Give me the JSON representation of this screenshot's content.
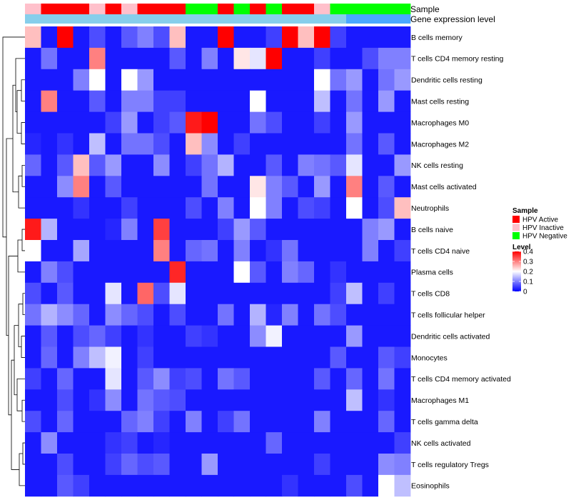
{
  "chart_data": {
    "type": "heatmap",
    "title": "",
    "annotation_tracks": {
      "sample_label": "Sample",
      "expression_label": "Gene expression level"
    },
    "rows": [
      "B cells memory",
      "T cells CD4 memory resting",
      "Dendritic cells resting",
      "Mast cells resting",
      "Macrophages M0",
      "Macrophages M2",
      "NK cells resting",
      "Mast cells activated",
      "Neutrophils",
      "B cells naive",
      "T cells CD4 naive",
      "Plasma cells",
      "T cells CD8",
      "T cells follicular helper",
      "Dendritic cells activated",
      "Monocytes",
      "T cells CD4 memory activated",
      "Macrophages M1",
      "T cells gamma delta",
      "NK cells activated",
      "T cells regulatory  Tregs",
      "Eosinophils"
    ],
    "sample_groups": [
      "HPV Inactive",
      "HPV Active",
      "HPV Active",
      "HPV Active",
      "HPV Inactive",
      "HPV Active",
      "HPV Inactive",
      "HPV Active",
      "HPV Active",
      "HPV Active",
      "HPV Negative",
      "HPV Negative",
      "HPV Active",
      "HPV Negative",
      "HPV Active",
      "HPV Negative",
      "HPV Active",
      "HPV Active",
      "HPV Inactive",
      "HPV Negative",
      "HPV Negative",
      "HPV Negative",
      "HPV Negative",
      "HPV Negative"
    ],
    "expression_track": [
      0.05,
      0.05,
      0.05,
      0.05,
      0.05,
      0.05,
      0.05,
      0.05,
      0.05,
      0.05,
      0.05,
      0.05,
      0.05,
      0.05,
      0.05,
      0.05,
      0.05,
      0.05,
      0.05,
      0.05,
      0.1,
      0.1,
      0.1,
      0.1
    ],
    "values": [
      [
        0.25,
        0.02,
        0.4,
        0.02,
        0.06,
        0.02,
        0.07,
        0.1,
        0.06,
        0.25,
        0.02,
        0.02,
        0.4,
        0.02,
        0.02,
        0.05,
        0.4,
        0.25,
        0.4,
        0.05,
        0.02,
        0.02,
        0.02,
        0.02
      ],
      [
        0.02,
        0.09,
        0.02,
        0.02,
        0.3,
        0.02,
        0.02,
        0.02,
        0.02,
        0.07,
        0.02,
        0.1,
        0.02,
        0.22,
        0.18,
        0.4,
        0.02,
        0.02,
        0.05,
        0.02,
        0.02,
        0.06,
        0.1,
        0.1
      ],
      [
        0.02,
        0.02,
        0.02,
        0.1,
        0.2,
        0.02,
        0.2,
        0.12,
        0.02,
        0.02,
        0.02,
        0.02,
        0.02,
        0.02,
        0.02,
        0.02,
        0.02,
        0.02,
        0.2,
        0.09,
        0.12,
        0.02,
        0.09,
        0.12
      ],
      [
        0.02,
        0.3,
        0.02,
        0.02,
        0.07,
        0.02,
        0.1,
        0.1,
        0.05,
        0.05,
        0.02,
        0.02,
        0.02,
        0.02,
        0.2,
        0.02,
        0.02,
        0.02,
        0.15,
        0.02,
        0.09,
        0.02,
        0.12,
        0.02
      ],
      [
        0.02,
        0.02,
        0.02,
        0.02,
        0.02,
        0.05,
        0.12,
        0.02,
        0.05,
        0.07,
        0.38,
        0.4,
        0.02,
        0.02,
        0.09,
        0.06,
        0.02,
        0.02,
        0.05,
        0.02,
        0.12,
        0.02,
        0.02,
        0.02
      ],
      [
        0.03,
        0.02,
        0.04,
        0.02,
        0.15,
        0.02,
        0.09,
        0.09,
        0.06,
        0.02,
        0.25,
        0.11,
        0.02,
        0.05,
        0.02,
        0.02,
        0.02,
        0.02,
        0.02,
        0.02,
        0.09,
        0.02,
        0.07,
        0.02
      ],
      [
        0.08,
        0.02,
        0.07,
        0.25,
        0.07,
        0.12,
        0.02,
        0.02,
        0.11,
        0.02,
        0.05,
        0.09,
        0.14,
        0.02,
        0.02,
        0.07,
        0.02,
        0.1,
        0.09,
        0.07,
        0.18,
        0.02,
        0.02,
        0.12
      ],
      [
        0.02,
        0.02,
        0.11,
        0.3,
        0.02,
        0.07,
        0.02,
        0.02,
        0.02,
        0.02,
        0.02,
        0.09,
        0.02,
        0.02,
        0.22,
        0.1,
        0.07,
        0.02,
        0.12,
        0.02,
        0.3,
        0.02,
        0.07,
        0.02
      ],
      [
        0.02,
        0.02,
        0.02,
        0.04,
        0.02,
        0.02,
        0.05,
        0.02,
        0.02,
        0.02,
        0.06,
        0.02,
        0.1,
        0.02,
        0.2,
        0.1,
        0.02,
        0.06,
        0.05,
        0.02,
        0.2,
        0.02,
        0.06,
        0.25
      ],
      [
        0.38,
        0.14,
        0.02,
        0.02,
        0.02,
        0.03,
        0.1,
        0.02,
        0.35,
        0.02,
        0.02,
        0.02,
        0.05,
        0.12,
        0.07,
        0.02,
        0.02,
        0.02,
        0.02,
        0.02,
        0.02,
        0.1,
        0.12,
        0.02
      ],
      [
        0.2,
        0.02,
        0.02,
        0.13,
        0.02,
        0.02,
        0.02,
        0.02,
        0.3,
        0.02,
        0.08,
        0.09,
        0.02,
        0.1,
        0.02,
        0.04,
        0.09,
        0.02,
        0.02,
        0.02,
        0.02,
        0.1,
        0.02,
        0.05
      ],
      [
        0.02,
        0.1,
        0.06,
        0.02,
        0.02,
        0.02,
        0.02,
        0.02,
        0.02,
        0.37,
        0.02,
        0.02,
        0.02,
        0.2,
        0.07,
        0.02,
        0.1,
        0.08,
        0.02,
        0.04,
        0.02,
        0.02,
        0.02,
        0.02
      ],
      [
        0.06,
        0.02,
        0.07,
        0.02,
        0.02,
        0.18,
        0.02,
        0.32,
        0.06,
        0.18,
        0.02,
        0.02,
        0.02,
        0.02,
        0.02,
        0.02,
        0.02,
        0.02,
        0.02,
        0.05,
        0.15,
        0.02,
        0.05,
        0.02
      ],
      [
        0.09,
        0.14,
        0.11,
        0.08,
        0.02,
        0.11,
        0.08,
        0.06,
        0.02,
        0.06,
        0.02,
        0.02,
        0.09,
        0.02,
        0.14,
        0.03,
        0.1,
        0.02,
        0.09,
        0.06,
        0.02,
        0.02,
        0.02,
        0.02
      ],
      [
        0.02,
        0.07,
        0.02,
        0.06,
        0.08,
        0.05,
        0.02,
        0.04,
        0.02,
        0.02,
        0.05,
        0.04,
        0.02,
        0.02,
        0.11,
        0.19,
        0.02,
        0.02,
        0.02,
        0.02,
        0.12,
        0.02,
        0.02,
        0.02
      ],
      [
        0.02,
        0.08,
        0.02,
        0.1,
        0.15,
        0.19,
        0.02,
        0.05,
        0.02,
        0.02,
        0.02,
        0.02,
        0.02,
        0.02,
        0.02,
        0.02,
        0.02,
        0.02,
        0.02,
        0.07,
        0.02,
        0.02,
        0.07,
        0.05
      ],
      [
        0.05,
        0.02,
        0.08,
        0.02,
        0.02,
        0.18,
        0.02,
        0.07,
        0.11,
        0.05,
        0.06,
        0.02,
        0.09,
        0.07,
        0.02,
        0.02,
        0.02,
        0.02,
        0.07,
        0.02,
        0.08,
        0.02,
        0.09,
        0.02
      ],
      [
        0.02,
        0.02,
        0.06,
        0.02,
        0.04,
        0.11,
        0.02,
        0.09,
        0.07,
        0.06,
        0.02,
        0.02,
        0.02,
        0.02,
        0.02,
        0.02,
        0.02,
        0.02,
        0.02,
        0.02,
        0.15,
        0.02,
        0.04,
        0.02
      ],
      [
        0.06,
        0.02,
        0.08,
        0.02,
        0.02,
        0.02,
        0.08,
        0.1,
        0.05,
        0.02,
        0.1,
        0.02,
        0.05,
        0.09,
        0.02,
        0.02,
        0.02,
        0.02,
        0.1,
        0.02,
        0.02,
        0.02,
        0.08,
        0.02
      ],
      [
        0.02,
        0.11,
        0.02,
        0.02,
        0.02,
        0.04,
        0.05,
        0.02,
        0.03,
        0.02,
        0.02,
        0.02,
        0.02,
        0.02,
        0.02,
        0.08,
        0.02,
        0.02,
        0.02,
        0.02,
        0.02,
        0.02,
        0.02,
        0.05
      ],
      [
        0.02,
        0.02,
        0.06,
        0.02,
        0.02,
        0.05,
        0.08,
        0.06,
        0.07,
        0.02,
        0.02,
        0.12,
        0.02,
        0.02,
        0.02,
        0.02,
        0.02,
        0.02,
        0.05,
        0.02,
        0.02,
        0.02,
        0.11,
        0.1
      ],
      [
        0.02,
        0.02,
        0.07,
        0.05,
        0.02,
        0.02,
        0.02,
        0.02,
        0.02,
        0.02,
        0.02,
        0.02,
        0.02,
        0.02,
        0.02,
        0.02,
        0.04,
        0.02,
        0.02,
        0.02,
        0.06,
        0.02,
        0.2,
        0.15
      ]
    ],
    "legend_sample": {
      "title": "Sample",
      "entries": [
        {
          "label": "HPV Active",
          "color": "#ff0000"
        },
        {
          "label": "HPV Inactive",
          "color": "#ffc0cb"
        },
        {
          "label": "HPV Negative",
          "color": "#00ff00"
        }
      ]
    },
    "legend_level": {
      "title": "Level",
      "ticks": [
        0.4,
        0.3,
        0.2,
        0.1,
        0
      ],
      "range": [
        0,
        0.4
      ],
      "colors": {
        "low": "#0000ff",
        "mid": "#ffffff",
        "high": "#ff0000"
      }
    },
    "expression_colors": {
      "low": "#87ceeb",
      "high": "#4aa8ff"
    }
  }
}
